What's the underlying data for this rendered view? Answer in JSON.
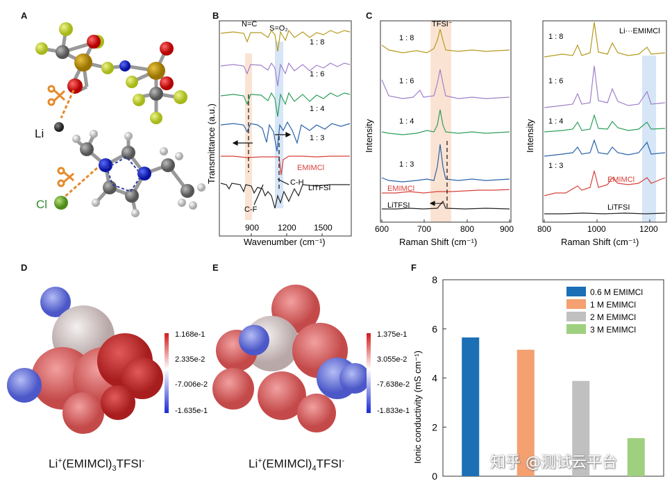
{
  "panels": {
    "A": {
      "letter": "A",
      "atom_labels": [
        "Li",
        "Cl"
      ]
    },
    "B": {
      "letter": "B",
      "ylabel": "Transmittance (a.u.)",
      "xlabel": "Wavenumber (cm⁻¹)",
      "xticks": [
        "900",
        "1200",
        "1500"
      ],
      "bands": [
        "N=C",
        "S=O₂"
      ],
      "trace_labels": [
        "1 : 8",
        "1 : 6",
        "1 : 4",
        "1 : 3",
        "EMIMCl",
        "LiTFSI"
      ],
      "annotations": [
        "C-H",
        "C-F"
      ]
    },
    "C": {
      "letter": "C",
      "left": {
        "ylabel": "Intensity",
        "xlabel": "Raman Shift (cm⁻¹)",
        "xticks": [
          "600",
          "700",
          "800",
          "900"
        ],
        "band": "TFSI⁻",
        "trace_labels": [
          "1 : 8",
          "1 : 6",
          "1 : 4",
          "1 : 3",
          "EMIMCl",
          "LiTFSI"
        ]
      },
      "right": {
        "ylabel": "Intensity",
        "xlabel": "Raman Shift (cm⁻¹)",
        "xticks": [
          "800",
          "1000",
          "1200"
        ],
        "band": "Li···EMIMCl",
        "trace_labels": [
          "1 : 8",
          "1 : 6",
          "1 : 4",
          "1 : 3",
          "EMIMCl",
          "LiTFSI"
        ]
      }
    },
    "D": {
      "letter": "D",
      "scale": [
        "1.168e-1",
        "2.335e-2",
        "-7.006e-2",
        "-1.635e-1"
      ],
      "caption": {
        "a": "Li",
        "sup1": "+",
        "b": "(EMIMCl)",
        "sub": "3",
        "c": "TFSI",
        "sup2": "-"
      }
    },
    "E": {
      "letter": "E",
      "scale": [
        "1.375e-1",
        "3.055e-2",
        "-7.638e-2",
        "-1.833e-1"
      ],
      "caption": {
        "a": "Li",
        "sup1": "+",
        "b": "(EMIMCl)",
        "sub": "4",
        "c": "TFSI",
        "sup2": "-"
      }
    },
    "F": {
      "letter": "F"
    }
  },
  "colors": {
    "r18": "#b59a1c",
    "r16": "#a07fc9",
    "r14": "#2e9e5a",
    "r13": "#2a62a8",
    "emimcl": "#d8403a",
    "litfsi": "#222222",
    "bar1": "#1a6fb5",
    "bar2": "#f4a070",
    "bar3": "#c0c0c0",
    "bar4": "#9fd07f"
  },
  "watermark": "知乎 @测试云平台",
  "chart_data": {
    "type": "bar",
    "categories": [
      "0.6 M EMIMCl",
      "1 M EMIMCl",
      "2 M EMIMCl",
      "3 M EMIMCl"
    ],
    "values": [
      5.65,
      5.15,
      3.88,
      1.55
    ],
    "ylabel": "Ionic conductivity (mS cm⁻¹)",
    "ylim": [
      0,
      8
    ],
    "yticks": [
      "0",
      "2",
      "4",
      "6",
      "8"
    ],
    "legend_position": "top-right"
  }
}
